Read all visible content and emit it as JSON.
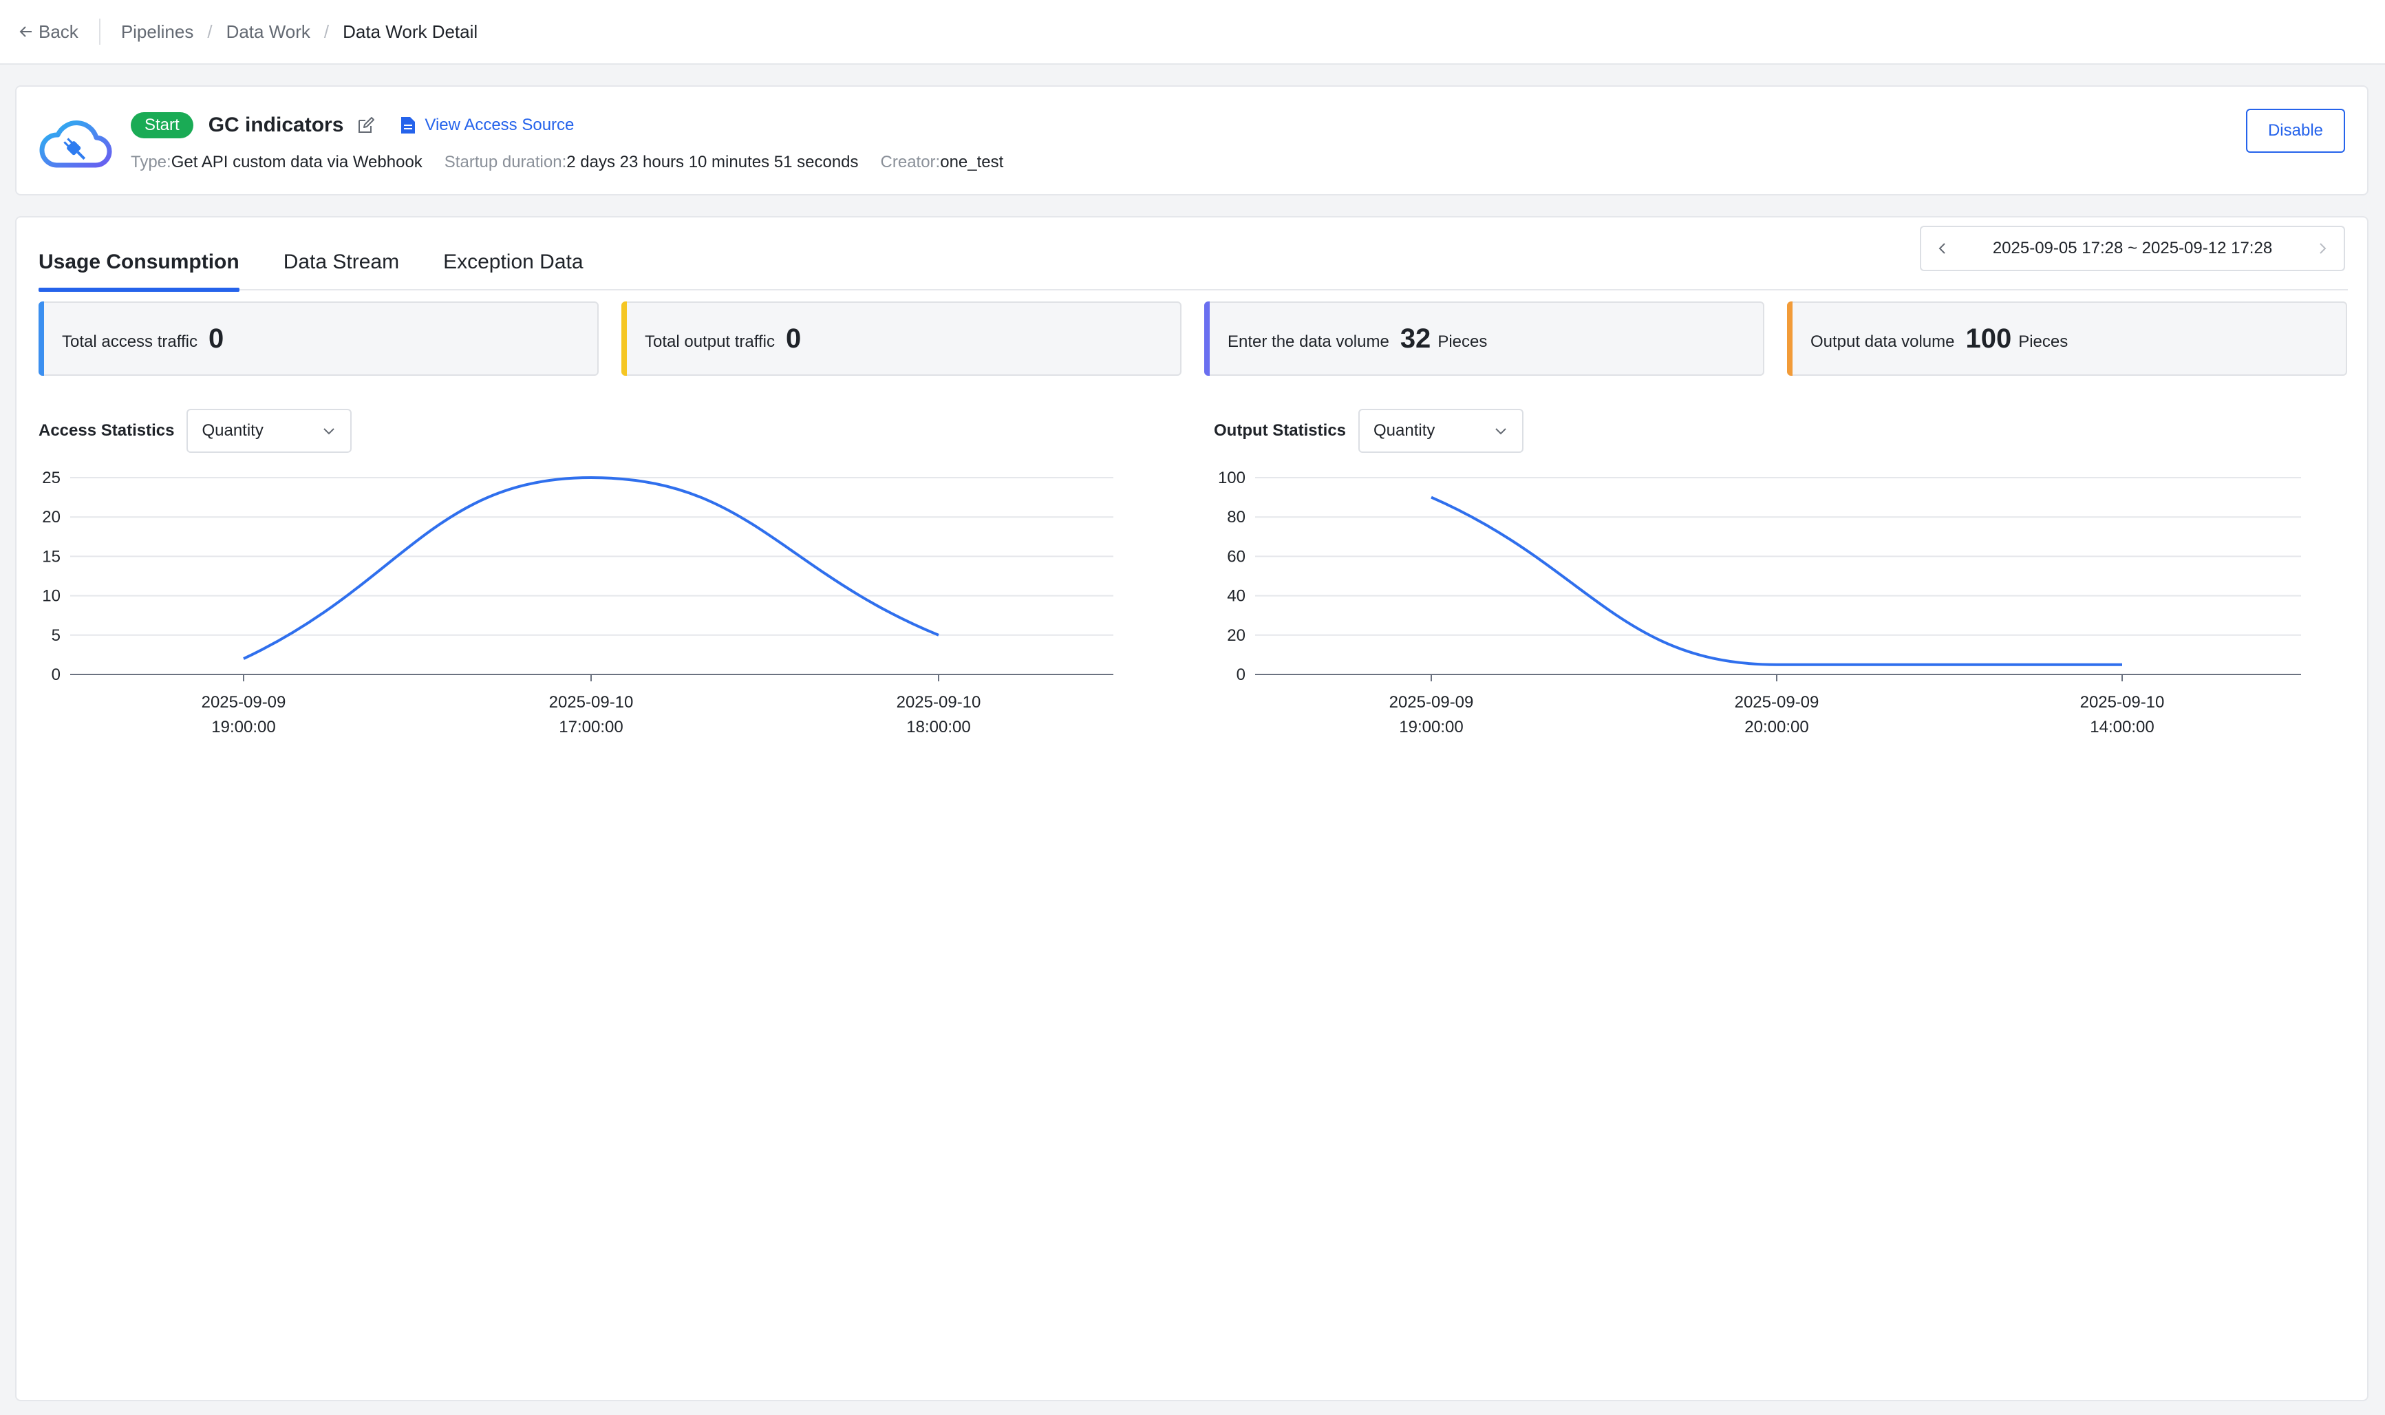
{
  "breadcrumb": {
    "back": "Back",
    "items": [
      "Pipelines",
      "Data Work",
      "Data Work Detail"
    ]
  },
  "header": {
    "status": "Start",
    "title": "GC indicators",
    "view_source": "View Access Source",
    "meta": [
      {
        "label": "Type:",
        "value": "Get API custom data via Webhook"
      },
      {
        "label": "Startup duration:",
        "value": "2 days 23 hours 10 minutes 51 seconds"
      },
      {
        "label": "Creator:",
        "value": "one_test"
      }
    ],
    "disable_button": "Disable"
  },
  "tabs": [
    "Usage Consumption",
    "Data Stream",
    "Exception Data"
  ],
  "active_tab": 0,
  "date_range": "2025-09-05 17:28 ~ 2025-09-12 17:28",
  "stats": [
    {
      "label": "Total access traffic",
      "value": "0",
      "unit": "",
      "color": "#3b8ff0"
    },
    {
      "label": "Total output traffic",
      "value": "0",
      "unit": "",
      "color": "#f5c623"
    },
    {
      "label": "Enter the data volume",
      "value": "32",
      "unit": "Pieces",
      "color": "#6a6ff0"
    },
    {
      "label": "Output data volume",
      "value": "100",
      "unit": "Pieces",
      "color": "#f29b38"
    }
  ],
  "charts": {
    "access": {
      "title": "Access Statistics",
      "select": "Quantity"
    },
    "output": {
      "title": "Output Statistics",
      "select": "Quantity"
    }
  },
  "chart_data": [
    {
      "type": "line",
      "title": "Access Statistics",
      "x": [
        "2025-09-09 19:00:00",
        "2025-09-10 17:00:00",
        "2025-09-10 18:00:00"
      ],
      "x_date": [
        "2025-09-09",
        "2025-09-10",
        "2025-09-10"
      ],
      "x_time": [
        "19:00:00",
        "17:00:00",
        "18:00:00"
      ],
      "values": [
        2,
        25,
        5
      ],
      "yticks": [
        0,
        5,
        10,
        15,
        20,
        25
      ],
      "ylim": [
        0,
        25
      ],
      "grid": true,
      "color": "#2f6fed"
    },
    {
      "type": "line",
      "title": "Output Statistics",
      "x": [
        "2025-09-09 19:00:00",
        "2025-09-09 20:00:00",
        "2025-09-10 14:00:00"
      ],
      "x_date": [
        "2025-09-09",
        "2025-09-09",
        "2025-09-10"
      ],
      "x_time": [
        "19:00:00",
        "20:00:00",
        "14:00:00"
      ],
      "values": [
        90,
        5,
        5
      ],
      "yticks": [
        0,
        20,
        40,
        60,
        80,
        100
      ],
      "ylim": [
        0,
        100
      ],
      "grid": true,
      "color": "#2f6fed"
    }
  ]
}
